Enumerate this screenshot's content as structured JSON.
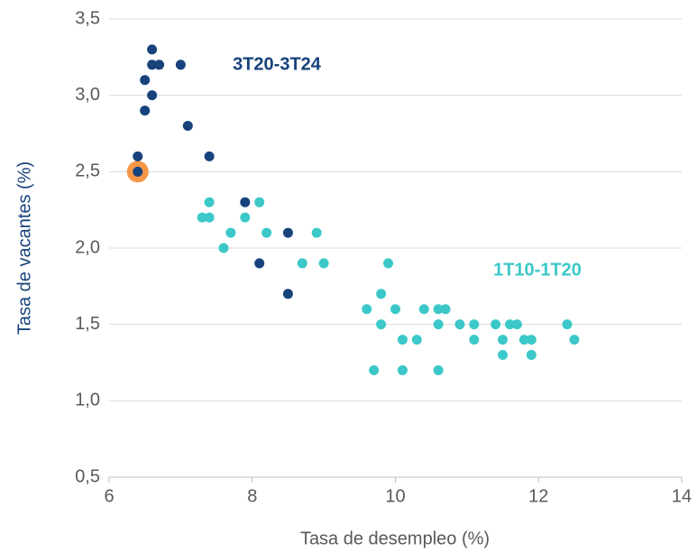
{
  "chart_data": {
    "type": "scatter",
    "xlabel": "Tasa de desempleo (%)",
    "ylabel": "Tasa de vacantes (%)",
    "xlim": [
      6,
      14
    ],
    "xticks": [
      6,
      8,
      10,
      12,
      14
    ],
    "ylim": [
      0.5,
      3.5
    ],
    "yticks": [
      {
        "value": 0.5,
        "label": "0,5"
      },
      {
        "value": 1.0,
        "label": "1,0"
      },
      {
        "value": 1.5,
        "label": "1,5"
      },
      {
        "value": 2.0,
        "label": "2,0"
      },
      {
        "value": 2.5,
        "label": "2,5"
      },
      {
        "value": 3.0,
        "label": "3,0"
      },
      {
        "value": 3.5,
        "label": "3,5"
      }
    ],
    "grid": true,
    "series": [
      {
        "name": "3T20-3T24",
        "color": "#17427c",
        "x": [
          6.6,
          6.6,
          6.7,
          7.0,
          6.5,
          6.6,
          6.5,
          7.1,
          6.4,
          7.4,
          6.4,
          7.9,
          8.5,
          8.1,
          8.5
        ],
        "values": [
          3.3,
          3.2,
          3.2,
          3.2,
          3.1,
          3.0,
          2.9,
          2.8,
          2.6,
          2.6,
          2.5,
          2.3,
          2.1,
          1.9,
          1.7
        ]
      },
      {
        "name": "1T10-1T20",
        "color": "#3cc8c8",
        "x": [
          7.4,
          8.1,
          7.3,
          7.4,
          7.9,
          7.7,
          8.2,
          8.9,
          7.6,
          8.7,
          9.0,
          9.9,
          9.8,
          9.6,
          10.0,
          10.4,
          10.6,
          10.7,
          9.8,
          10.6,
          10.9,
          11.1,
          11.4,
          11.6,
          11.7,
          12.4,
          10.1,
          10.3,
          11.1,
          11.5,
          11.8,
          11.9,
          12.5,
          11.5,
          11.9,
          9.7,
          10.1,
          10.6
        ],
        "values": [
          2.3,
          2.3,
          2.2,
          2.2,
          2.2,
          2.1,
          2.1,
          2.1,
          2.0,
          1.9,
          1.9,
          1.9,
          1.7,
          1.6,
          1.6,
          1.6,
          1.6,
          1.6,
          1.5,
          1.5,
          1.5,
          1.5,
          1.5,
          1.5,
          1.5,
          1.5,
          1.4,
          1.4,
          1.4,
          1.4,
          1.4,
          1.4,
          1.4,
          1.3,
          1.3,
          1.2,
          1.2,
          1.2
        ]
      }
    ],
    "highlight": {
      "x": 6.4,
      "y": 2.5,
      "color": "#f79646"
    }
  }
}
